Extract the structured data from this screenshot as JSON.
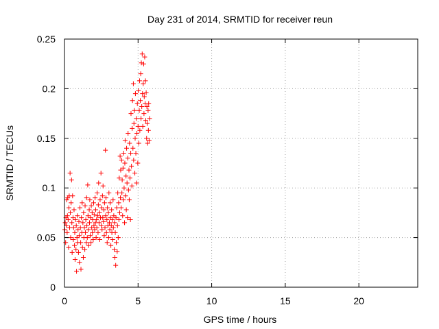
{
  "chart_data": {
    "type": "scatter",
    "title": "Day 231 of 2014, SRMTID for receiver reun",
    "xlabel": "GPS time / hours",
    "ylabel": "SRMTID / TECUs",
    "xlim": [
      0,
      24
    ],
    "ylim": [
      0,
      0.25
    ],
    "xticks": [
      0,
      5,
      10,
      15,
      20
    ],
    "xtick_labels": [
      "0",
      "5",
      "10",
      "15",
      "20"
    ],
    "yticks": [
      0,
      0.05,
      0.1,
      0.15,
      0.2,
      0.25
    ],
    "ytick_labels": [
      "0",
      "0.05",
      "0.1",
      "0.15",
      "0.2",
      "0.25"
    ],
    "grid": true,
    "marker": "plus",
    "color": "#ff0000",
    "series": [
      {
        "name": "SRMTID",
        "points": [
          [
            0.02,
            0.058
          ],
          [
            0.05,
            0.065
          ],
          [
            0.08,
            0.045
          ],
          [
            0.1,
            0.07
          ],
          [
            0.12,
            0.062
          ],
          [
            0.15,
            0.088
          ],
          [
            0.18,
            0.055
          ],
          [
            0.2,
            0.072
          ],
          [
            0.22,
            0.09
          ],
          [
            0.25,
            0.068
          ],
          [
            0.28,
            0.04
          ],
          [
            0.3,
            0.08
          ],
          [
            0.32,
            0.092
          ],
          [
            0.35,
            0.06
          ],
          [
            0.38,
            0.115
          ],
          [
            0.4,
            0.075
          ],
          [
            0.42,
            0.05
          ],
          [
            0.45,
            0.085
          ],
          [
            0.48,
            0.108
          ],
          [
            0.5,
            0.065
          ],
          [
            0.52,
            0.035
          ],
          [
            0.55,
            0.092
          ],
          [
            0.58,
            0.07
          ],
          [
            0.6,
            0.048
          ],
          [
            0.62,
            0.06
          ],
          [
            0.65,
            0.078
          ],
          [
            0.68,
            0.042
          ],
          [
            0.7,
            0.055
          ],
          [
            0.72,
            0.028
          ],
          [
            0.75,
            0.068
          ],
          [
            0.78,
            0.038
          ],
          [
            0.8,
            0.062
          ],
          [
            0.82,
            0.016
          ],
          [
            0.85,
            0.05
          ],
          [
            0.88,
            0.072
          ],
          [
            0.9,
            0.045
          ],
          [
            0.92,
            0.058
          ],
          [
            0.95,
            0.035
          ],
          [
            0.98,
            0.066
          ],
          [
            1.0,
            0.052
          ],
          [
            1.02,
            0.025
          ],
          [
            1.05,
            0.08
          ],
          [
            1.08,
            0.06
          ],
          [
            1.1,
            0.045
          ],
          [
            1.12,
            0.018
          ],
          [
            1.15,
            0.07
          ],
          [
            1.18,
            0.055
          ],
          [
            1.2,
            0.085
          ],
          [
            1.22,
            0.04
          ],
          [
            1.25,
            0.065
          ],
          [
            1.28,
            0.03
          ],
          [
            1.3,
            0.075
          ],
          [
            1.32,
            0.05
          ],
          [
            1.35,
            0.06
          ],
          [
            1.38,
            0.038
          ],
          [
            1.4,
            0.082
          ],
          [
            1.42,
            0.055
          ],
          [
            1.45,
            0.068
          ],
          [
            1.48,
            0.045
          ],
          [
            1.5,
            0.09
          ],
          [
            1.52,
            0.062
          ],
          [
            1.55,
            0.05
          ],
          [
            1.58,
            0.103
          ],
          [
            1.6,
            0.072
          ],
          [
            1.62,
            0.058
          ],
          [
            1.65,
            0.042
          ],
          [
            1.68,
            0.078
          ],
          [
            1.7,
            0.065
          ],
          [
            1.72,
            0.088
          ],
          [
            1.75,
            0.052
          ],
          [
            1.78,
            0.07
          ],
          [
            1.8,
            0.045
          ],
          [
            1.82,
            0.082
          ],
          [
            1.85,
            0.06
          ],
          [
            1.88,
            0.075
          ],
          [
            1.9,
            0.055
          ],
          [
            1.92,
            0.068
          ],
          [
            1.95,
            0.048
          ],
          [
            1.98,
            0.085
          ],
          [
            2.0,
            0.062
          ],
          [
            2.02,
            0.073
          ],
          [
            2.05,
            0.058
          ],
          [
            2.08,
            0.09
          ],
          [
            2.1,
            0.065
          ],
          [
            2.12,
            0.078
          ],
          [
            2.15,
            0.05
          ],
          [
            2.18,
            0.068
          ],
          [
            2.2,
            0.06
          ],
          [
            2.22,
            0.095
          ],
          [
            2.25,
            0.072
          ],
          [
            2.28,
            0.055
          ],
          [
            2.3,
            0.083
          ],
          [
            2.32,
            0.105
          ],
          [
            2.35,
            0.065
          ],
          [
            2.38,
            0.075
          ],
          [
            2.4,
            0.048
          ],
          [
            2.42,
            0.088
          ],
          [
            2.45,
            0.07
          ],
          [
            2.48,
            0.115
          ],
          [
            2.5,
            0.062
          ],
          [
            2.52,
            0.08
          ],
          [
            2.55,
            0.058
          ],
          [
            2.58,
            0.092
          ],
          [
            2.6,
            0.07
          ],
          [
            2.62,
            0.102
          ],
          [
            2.65,
            0.066
          ],
          [
            2.68,
            0.078
          ],
          [
            2.7,
            0.052
          ],
          [
            2.72,
            0.085
          ],
          [
            2.75,
            0.06
          ],
          [
            2.78,
            0.138
          ],
          [
            2.8,
            0.072
          ],
          [
            2.82,
            0.09
          ],
          [
            2.85,
            0.055
          ],
          [
            2.88,
            0.068
          ],
          [
            2.9,
            0.045
          ],
          [
            2.92,
            0.08
          ],
          [
            2.95,
            0.062
          ],
          [
            2.98,
            0.075
          ],
          [
            3.0,
            0.05
          ],
          [
            3.02,
            0.095
          ],
          [
            3.05,
            0.065
          ],
          [
            3.08,
            0.058
          ],
          [
            3.1,
            0.085
          ],
          [
            3.12,
            0.07
          ],
          [
            3.15,
            0.042
          ],
          [
            3.18,
            0.062
          ],
          [
            3.2,
            0.078
          ],
          [
            3.22,
            0.055
          ],
          [
            3.25,
            0.068
          ],
          [
            3.28,
            0.048
          ],
          [
            3.3,
            0.088
          ],
          [
            3.32,
            0.06
          ],
          [
            3.35,
            0.072
          ],
          [
            3.38,
            0.038
          ],
          [
            3.4,
            0.065
          ],
          [
            3.42,
            0.03
          ],
          [
            3.45,
            0.055
          ],
          [
            3.48,
            0.022
          ],
          [
            3.5,
            0.07
          ],
          [
            3.52,
            0.045
          ],
          [
            3.55,
            0.08
          ],
          [
            3.58,
            0.036
          ],
          [
            3.6,
            0.062
          ],
          [
            3.62,
            0.095
          ],
          [
            3.65,
            0.05
          ],
          [
            3.68,
            0.085
          ],
          [
            3.7,
            0.068
          ],
          [
            3.72,
            0.11
          ],
          [
            3.75,
            0.075
          ],
          [
            3.78,
            0.132
          ],
          [
            3.8,
            0.09
          ],
          [
            3.82,
            0.118
          ],
          [
            3.85,
            0.08
          ],
          [
            3.88,
            0.128
          ],
          [
            3.9,
            0.095
          ],
          [
            3.92,
            0.108
          ],
          [
            3.95,
            0.072
          ],
          [
            3.98,
            0.12
          ],
          [
            4.0,
            0.088
          ],
          [
            4.02,
            0.135
          ],
          [
            4.05,
            0.1
          ],
          [
            4.08,
            0.065
          ],
          [
            4.1,
            0.125
          ],
          [
            4.12,
            0.148
          ],
          [
            4.15,
            0.092
          ],
          [
            4.18,
            0.112
          ],
          [
            4.2,
            0.078
          ],
          [
            4.22,
            0.14
          ],
          [
            4.25,
            0.105
          ],
          [
            4.28,
            0.07
          ],
          [
            4.3,
            0.13
          ],
          [
            4.32,
            0.155
          ],
          [
            4.35,
            0.098
          ],
          [
            4.38,
            0.118
          ],
          [
            4.4,
            0.088
          ],
          [
            4.42,
            0.145
          ],
          [
            4.45,
            0.11
          ],
          [
            4.48,
            0.068
          ],
          [
            4.5,
            0.135
          ],
          [
            4.52,
            0.175
          ],
          [
            4.55,
            0.122
          ],
          [
            4.58,
            0.102
          ],
          [
            4.6,
            0.16
          ],
          [
            4.62,
            0.188
          ],
          [
            4.65,
            0.14
          ],
          [
            4.68,
            0.205
          ],
          [
            4.7,
            0.128
          ],
          [
            4.72,
            0.165
          ],
          [
            4.75,
            0.178
          ],
          [
            4.78,
            0.115
          ],
          [
            4.8,
            0.15
          ],
          [
            4.82,
            0.195
          ],
          [
            4.85,
            0.135
          ],
          [
            4.88,
            0.17
          ],
          [
            4.9,
            0.105
          ],
          [
            4.92,
            0.155
          ],
          [
            4.95,
            0.185
          ],
          [
            4.98,
            0.125
          ],
          [
            5.0,
            0.162
          ],
          [
            5.02,
            0.198
          ],
          [
            5.05,
            0.145
          ],
          [
            5.08,
            0.178
          ],
          [
            5.1,
            0.208
          ],
          [
            5.12,
            0.158
          ],
          [
            5.15,
            0.188
          ],
          [
            5.18,
            0.215
          ],
          [
            5.2,
            0.17
          ],
          [
            5.22,
            0.226
          ],
          [
            5.25,
            0.182
          ],
          [
            5.28,
            0.235
          ],
          [
            5.3,
            0.195
          ],
          [
            5.32,
            0.162
          ],
          [
            5.35,
            0.205
          ],
          [
            5.38,
            0.225
          ],
          [
            5.4,
            0.175
          ],
          [
            5.42,
            0.192
          ],
          [
            5.45,
            0.232
          ],
          [
            5.48,
            0.185
          ],
          [
            5.5,
            0.208
          ],
          [
            5.52,
            0.168
          ],
          [
            5.55,
            0.196
          ],
          [
            5.58,
            0.15
          ],
          [
            5.6,
            0.182
          ],
          [
            5.62,
            0.165
          ],
          [
            5.65,
            0.145
          ],
          [
            5.68,
            0.178
          ],
          [
            5.7,
            0.158
          ],
          [
            5.72,
            0.185
          ],
          [
            5.75,
            0.148
          ],
          [
            5.78,
            0.17
          ]
        ]
      }
    ]
  }
}
